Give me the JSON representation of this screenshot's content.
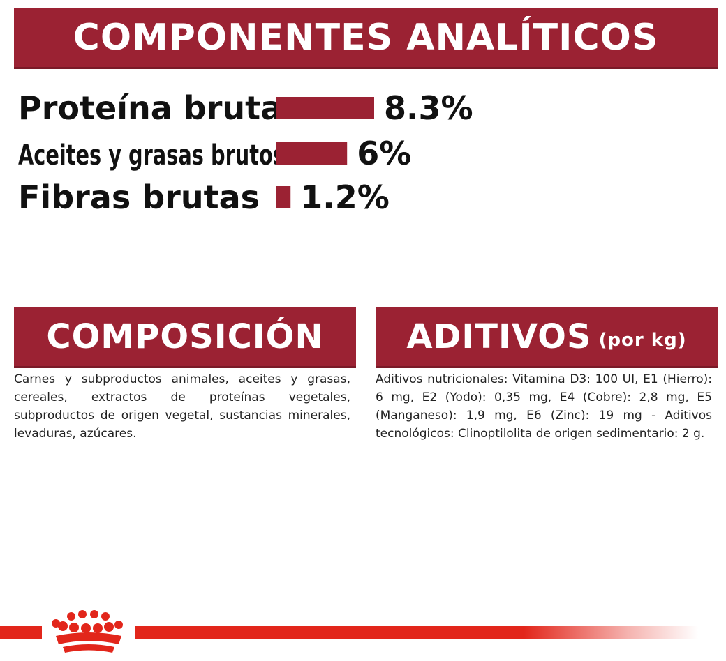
{
  "header": {
    "title": "COMPONENTES ANALÍTICOS"
  },
  "chart_data": {
    "type": "bar",
    "orientation": "horizontal",
    "categories": [
      "Proteína bruta",
      "Aceites y grasas brutos",
      "Fibras brutas"
    ],
    "values": [
      8.3,
      6,
      1.2
    ],
    "value_labels": [
      "8.3%",
      "6%",
      "1.2%"
    ],
    "bar_color": "#9b2233",
    "grid": false
  },
  "composicion": {
    "title": "COMPOSICIÓN",
    "text": "Carnes y subproductos animales, aceites y grasas, cereales, extractos de proteínas vegetales, subproductos de origen vegetal, sustancias minerales, levaduras, azúcares."
  },
  "aditivos": {
    "title": "ADITIVOS",
    "title_suffix": "(por kg)",
    "text": "Aditivos nutricionales: Vitamina D3: 100 UI, E1 (Hierro): 6 mg, E2 (Yodo): 0,35 mg, E4 (Cobre): 2,8 mg, E5 (Manganeso): 1,9 mg, E6 (Zinc): 19 mg - Aditivos tecnológicos: Clinoptilolita de origen sedimentario: 2 g."
  },
  "footer": {
    "logo_icon": "crown-logo-icon",
    "accent_color": "#e2261b"
  }
}
